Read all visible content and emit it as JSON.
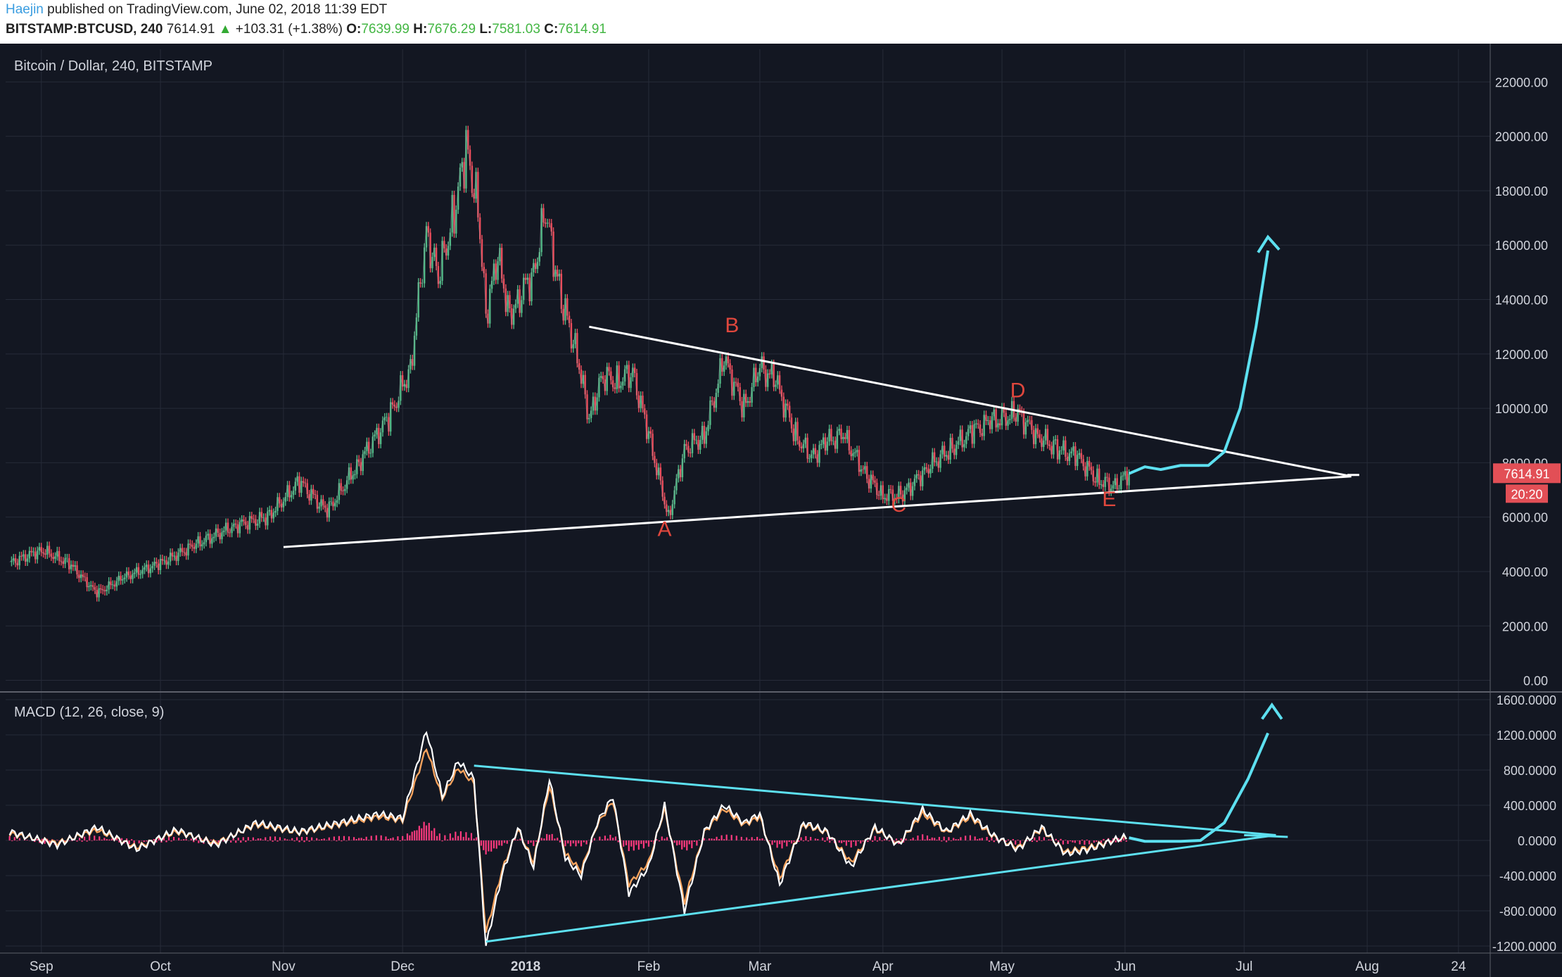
{
  "header": {
    "author": "Haejin",
    "published_text": "published on TradingView.com, June 02, 2018 11:39 EDT",
    "symbol": "BITSTAMP:BTCUSD, 240",
    "last": "7614.91",
    "change_arrow": "▲",
    "change": "+103.31 (+1.38%)",
    "o_label": "O:",
    "o_value": "7639.99",
    "h_label": "H:",
    "h_value": "7676.29",
    "l_label": "L:",
    "l_value": "7581.03",
    "c_label": "C:",
    "c_value": "7614.91"
  },
  "chart_data": [
    {
      "type": "line",
      "title": "Bitcoin / Dollar, 240, BITSTAMP",
      "xlabel": "",
      "ylabel": "",
      "ylim": [
        -400,
        23200
      ],
      "x_ticks": [
        "Sep",
        "Oct",
        "Nov",
        "Dec",
        "2018",
        "Feb",
        "Mar",
        "Apr",
        "May",
        "Jun",
        "Jul",
        "Aug",
        "24"
      ],
      "y_ticks": [
        0,
        2000,
        4000,
        6000,
        8000,
        10000,
        12000,
        14000,
        16000,
        18000,
        20000,
        22000
      ],
      "y_tick_labels": [
        "0.00",
        "2000.00",
        "4000.00",
        "6000.00",
        "8000.00",
        "10000.00",
        "12000.00",
        "14000.00",
        "16000.00",
        "18000.00",
        "20000.00",
        "22000.00"
      ],
      "grid": true,
      "price_label": "7614.91",
      "countdown_label": "20:20",
      "x": [
        "2018-08-26",
        "2017-09-01",
        "2017-09-08",
        "2017-09-15",
        "2017-09-22",
        "2017-10-01",
        "2017-10-10",
        "2017-10-20",
        "2017-10-28",
        "2017-11-05",
        "2017-11-12",
        "2017-11-20",
        "2017-11-28",
        "2017-12-03",
        "2017-12-07",
        "2017-12-10",
        "2017-12-14",
        "2017-12-17",
        "2017-12-20",
        "2017-12-22",
        "2017-12-25",
        "2017-12-28",
        "2017-12-30",
        "2018-01-03",
        "2018-01-06",
        "2018-01-10",
        "2018-01-14",
        "2018-01-17",
        "2018-01-20",
        "2018-01-24",
        "2018-01-28",
        "2018-02-01",
        "2018-02-06",
        "2018-02-10",
        "2018-02-15",
        "2018-02-20",
        "2018-02-25",
        "2018-03-01",
        "2018-03-05",
        "2018-03-10",
        "2018-03-14",
        "2018-03-18",
        "2018-03-22",
        "2018-03-28",
        "2018-04-01",
        "2018-04-06",
        "2018-04-12",
        "2018-04-18",
        "2018-04-24",
        "2018-04-28",
        "2018-05-05",
        "2018-05-10",
        "2018-05-15",
        "2018-05-20",
        "2018-05-25",
        "2018-05-29",
        "2018-06-02"
      ],
      "values": [
        4300,
        4800,
        4300,
        3200,
        3800,
        4300,
        5000,
        5700,
        6000,
        7300,
        6200,
        8000,
        9800,
        11500,
        16500,
        14800,
        17200,
        19500,
        17500,
        13500,
        15500,
        13500,
        14000,
        15000,
        17200,
        14000,
        12000,
        9500,
        11200,
        11000,
        11300,
        9000,
        6000,
        8500,
        9000,
        11800,
        10000,
        11500,
        11000,
        9000,
        8200,
        8800,
        9000,
        7500,
        6800,
        6800,
        7800,
        8500,
        9200,
        9500,
        9800,
        9000,
        8500,
        8200,
        7400,
        7100,
        7600
      ],
      "series_labels": [
        "A",
        "B",
        "C",
        "D",
        "E"
      ]
    },
    {
      "type": "line",
      "title": "MACD (12, 26, close, 9)",
      "xlabel": "",
      "ylabel": "",
      "ylim": [
        -1280,
        1680
      ],
      "y_ticks": [
        -1200,
        -800,
        -400,
        0,
        400,
        800,
        1200,
        1600
      ],
      "y_tick_labels": [
        "-1200.0000",
        "-800.0000",
        "-400.0000",
        "0.0000",
        "400.0000",
        "800.0000",
        "1200.0000",
        "1600.0000"
      ],
      "grid": true,
      "x": [
        "2018-08-26",
        "2017-09-05",
        "2017-09-15",
        "2017-09-25",
        "2017-10-05",
        "2017-10-15",
        "2017-10-25",
        "2017-11-05",
        "2017-11-15",
        "2017-11-25",
        "2017-12-01",
        "2017-12-07",
        "2017-12-11",
        "2017-12-15",
        "2017-12-19",
        "2017-12-22",
        "2017-12-26",
        "2017-12-30",
        "2018-01-03",
        "2018-01-07",
        "2018-01-11",
        "2018-01-15",
        "2018-01-19",
        "2018-01-23",
        "2018-01-27",
        "2018-02-01",
        "2018-02-05",
        "2018-02-10",
        "2018-02-15",
        "2018-02-20",
        "2018-02-25",
        "2018-03-01",
        "2018-03-06",
        "2018-03-12",
        "2018-03-18",
        "2018-03-24",
        "2018-03-30",
        "2018-04-05",
        "2018-04-11",
        "2018-04-17",
        "2018-04-23",
        "2018-04-29",
        "2018-05-05",
        "2018-05-11",
        "2018-05-17",
        "2018-05-23",
        "2018-05-29",
        "2018-06-02"
      ],
      "values": [
        100,
        -50,
        150,
        -100,
        120,
        -50,
        200,
        100,
        200,
        300,
        250,
        1250,
        500,
        900,
        700,
        -1200,
        -400,
        150,
        -300,
        700,
        -200,
        -400,
        200,
        500,
        -600,
        -300,
        400,
        -800,
        100,
        400,
        200,
        300,
        -500,
        200,
        100,
        -300,
        150,
        -50,
        350,
        100,
        300,
        50,
        -100,
        150,
        -150,
        -100,
        0,
        50
      ],
      "signal_values": [
        80,
        -30,
        120,
        -80,
        100,
        -30,
        180,
        90,
        180,
        270,
        230,
        1050,
        480,
        820,
        650,
        -1050,
        -350,
        130,
        -250,
        620,
        -150,
        -350,
        180,
        450,
        -500,
        -250,
        360,
        -700,
        90,
        360,
        180,
        270,
        -430,
        180,
        90,
        -250,
        130,
        -40,
        310,
        90,
        270,
        40,
        -80,
        130,
        -130,
        -80,
        0,
        40
      ],
      "histogram": [
        20,
        -20,
        30,
        -20,
        20,
        -20,
        20,
        10,
        20,
        30,
        20,
        200,
        20,
        80,
        50,
        -150,
        -50,
        20,
        -50,
        80,
        -50,
        -50,
        20,
        50,
        -100,
        -50,
        40,
        -100,
        10,
        40,
        20,
        30,
        -70,
        20,
        10,
        -50,
        20,
        -10,
        40,
        10,
        30,
        10,
        -20,
        20,
        -20,
        -20,
        0,
        10
      ]
    }
  ]
}
